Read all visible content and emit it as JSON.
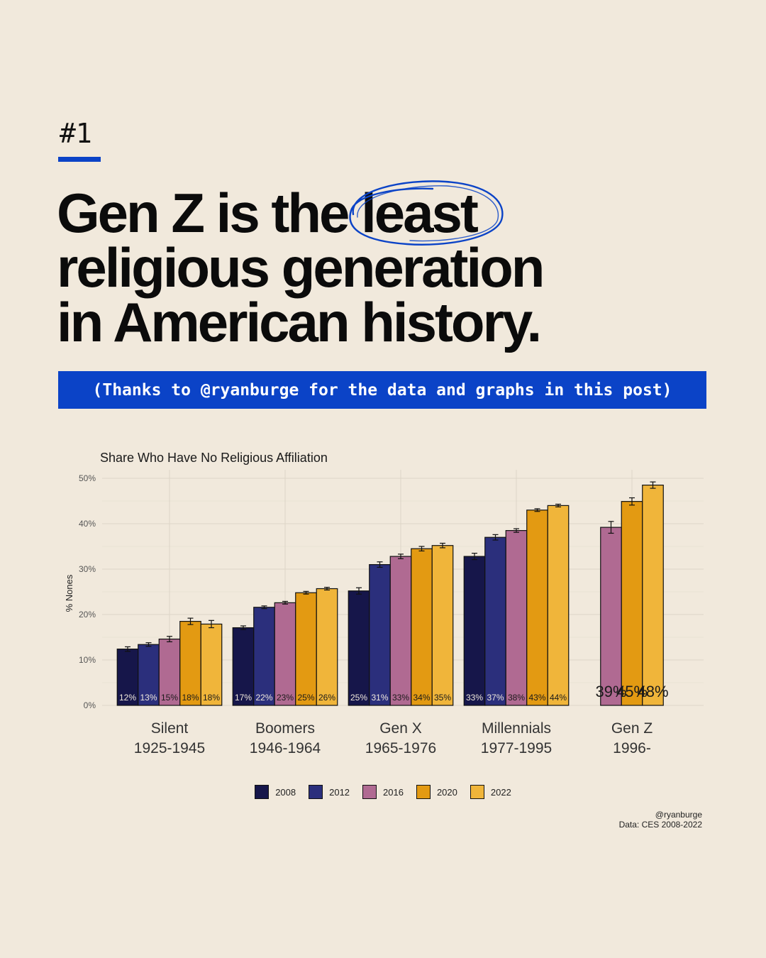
{
  "slide": {
    "number": "#1"
  },
  "headline": {
    "line1_prefix": "Gen Z is the ",
    "line1_emphasis": "least",
    "line2": "religious generation",
    "line3": "in American history."
  },
  "credit_banner": "(Thanks to @ryanburge for the data and graphs in this post)",
  "colors": {
    "accent_blue": "#0b43c7",
    "year_2008": "#16164a",
    "year_2012": "#2b2f7c",
    "year_2016": "#b06a92",
    "year_2020": "#e39a12",
    "year_2022": "#f0b53a"
  },
  "chart_data": {
    "type": "bar",
    "title": "Share Who Have No Religious Affiliation",
    "ylabel": "% Nones",
    "xlabel": "",
    "ylim": [
      0,
      50
    ],
    "yticks": [
      "0%",
      "10%",
      "20%",
      "30%",
      "40%",
      "50%"
    ],
    "grid": true,
    "categories": [
      {
        "name": "Silent",
        "years": "1925-1945"
      },
      {
        "name": "Boomers",
        "years": "1946-1964"
      },
      {
        "name": "Gen X",
        "years": "1965-1976"
      },
      {
        "name": "Millennials",
        "years": "1977-1995"
      },
      {
        "name": "Gen Z",
        "years": "1996-"
      }
    ],
    "series": [
      {
        "name": "2008",
        "color": "#16164a",
        "values": [
          12.4,
          17.1,
          25.2,
          32.8,
          null
        ],
        "errors": [
          0.5,
          0.4,
          0.7,
          0.7,
          null
        ],
        "labels": [
          "12%",
          "17%",
          "25%",
          "33%",
          ""
        ]
      },
      {
        "name": "2012",
        "color": "#2b2f7c",
        "values": [
          13.4,
          21.6,
          31.0,
          37.0,
          null
        ],
        "errors": [
          0.4,
          0.3,
          0.6,
          0.6,
          null
        ],
        "labels": [
          "13%",
          "22%",
          "31%",
          "37%",
          ""
        ]
      },
      {
        "name": "2016",
        "color": "#b06a92",
        "values": [
          14.6,
          22.6,
          32.8,
          38.5,
          39.2
        ],
        "errors": [
          0.6,
          0.3,
          0.5,
          0.4,
          1.3
        ],
        "labels": [
          "15%",
          "23%",
          "33%",
          "38%",
          "39%"
        ]
      },
      {
        "name": "2020",
        "color": "#e39a12",
        "values": [
          18.5,
          24.8,
          34.5,
          43.0,
          44.9
        ],
        "errors": [
          0.7,
          0.3,
          0.5,
          0.3,
          0.8
        ],
        "labels": [
          "18%",
          "25%",
          "34%",
          "43%",
          "45%"
        ]
      },
      {
        "name": "2022",
        "color": "#f0b53a",
        "values": [
          17.9,
          25.7,
          35.2,
          44.0,
          48.5
        ],
        "errors": [
          0.8,
          0.3,
          0.5,
          0.3,
          0.7
        ],
        "labels": [
          "18%",
          "26%",
          "35%",
          "44%",
          "48%"
        ]
      }
    ],
    "legend": [
      "2008",
      "2012",
      "2016",
      "2020",
      "2022"
    ],
    "legend_position": "bottom",
    "credit": "@ryanburge",
    "source": "Data: CES 2008-2022"
  }
}
